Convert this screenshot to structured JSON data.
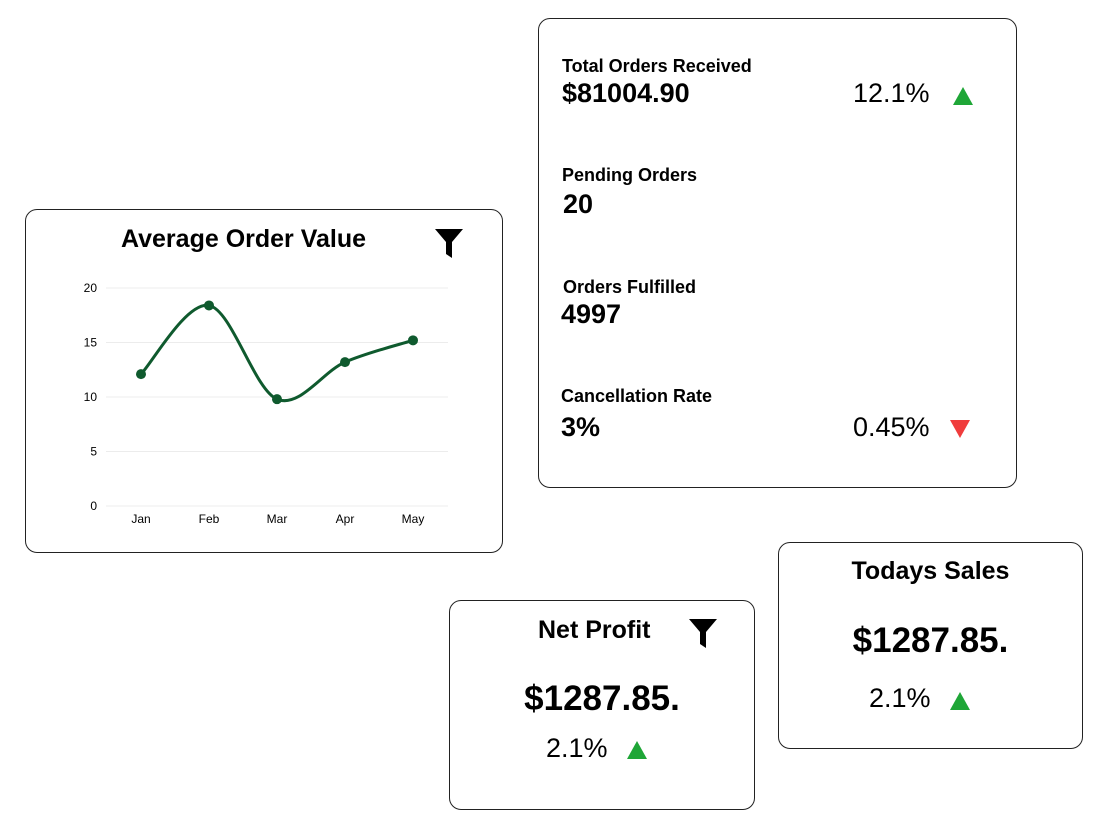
{
  "aov_card": {
    "title": "Average Order Value",
    "filter_icon": "filter-icon"
  },
  "chart_data": {
    "type": "line",
    "categories": [
      "Jan",
      "Feb",
      "Mar",
      "Apr",
      "May"
    ],
    "series": [
      {
        "values": [
          12.1,
          18.4,
          9.8,
          13.2,
          15.2
        ],
        "color": "#0f5a2e"
      }
    ],
    "title": "Average Order Value",
    "xlabel": "",
    "ylabel": "",
    "ylim": [
      0,
      20
    ],
    "yticks": [
      0,
      5,
      10,
      15,
      20
    ],
    "grid": true,
    "smooth": true
  },
  "stats_card": {
    "total_orders": {
      "label": "Total Orders Received",
      "value": "$81004.90",
      "change": "12.1%",
      "direction": "up"
    },
    "pending": {
      "label": "Pending Orders",
      "value": "20"
    },
    "fulfilled": {
      "label": "Orders Fulfilled",
      "value": "4997"
    },
    "cancellation": {
      "label": "Cancellation Rate",
      "value": "3%",
      "change": "0.45%",
      "direction": "down"
    }
  },
  "net_profit": {
    "title": "Net Profit",
    "value": "$1287.85.",
    "change": "2.1%",
    "direction": "up",
    "filter_icon": "filter-icon"
  },
  "todays_sales": {
    "title": "Todays Sales",
    "value": "$1287.85.",
    "change": "2.1%",
    "direction": "up"
  },
  "colors": {
    "up": "#1fa637",
    "down": "#f03c3c",
    "line": "#0f5a2e",
    "grid": "#ececec"
  }
}
